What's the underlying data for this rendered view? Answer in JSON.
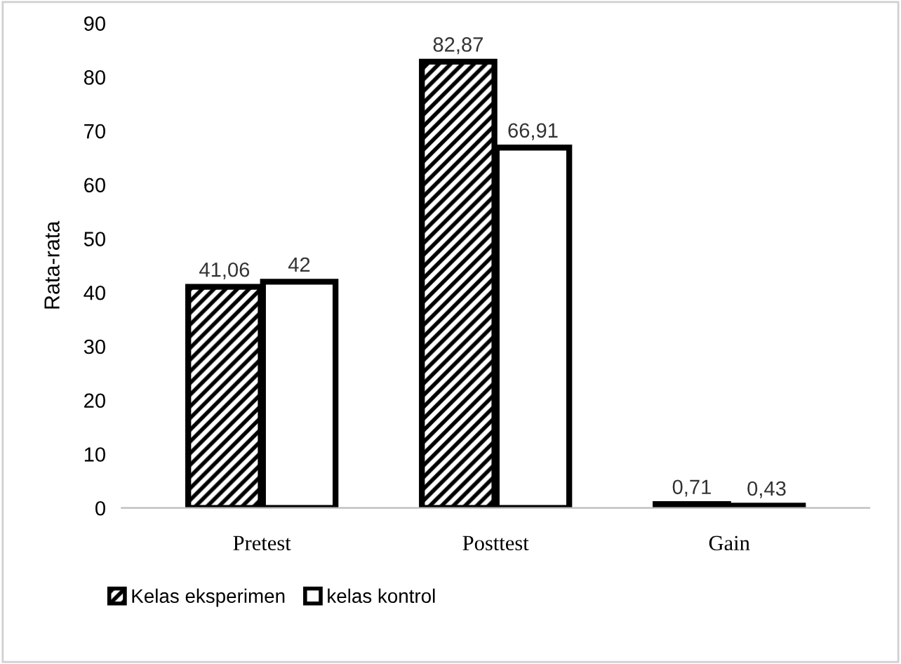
{
  "chart_data": {
    "type": "bar",
    "ylabel": "Rata-rata",
    "categories": [
      "Pretest",
      "Posttest",
      "Gain"
    ],
    "series": [
      {
        "name": "Kelas eksperimen",
        "color": "#000000",
        "values": [
          41.06,
          82.87,
          0.71
        ],
        "value_labels": [
          "41,06",
          "82,87",
          "0,71"
        ]
      },
      {
        "name": "kelas kontrol",
        "color": "#000000",
        "values": [
          42,
          66.91,
          0.43
        ],
        "value_labels": [
          "42",
          "66,91",
          "0,43"
        ]
      }
    ],
    "ylim": [
      0,
      90
    ],
    "yticks": [
      0,
      10,
      20,
      30,
      40,
      50,
      60,
      70,
      80,
      90
    ],
    "grid": false,
    "legend": "bottom"
  }
}
